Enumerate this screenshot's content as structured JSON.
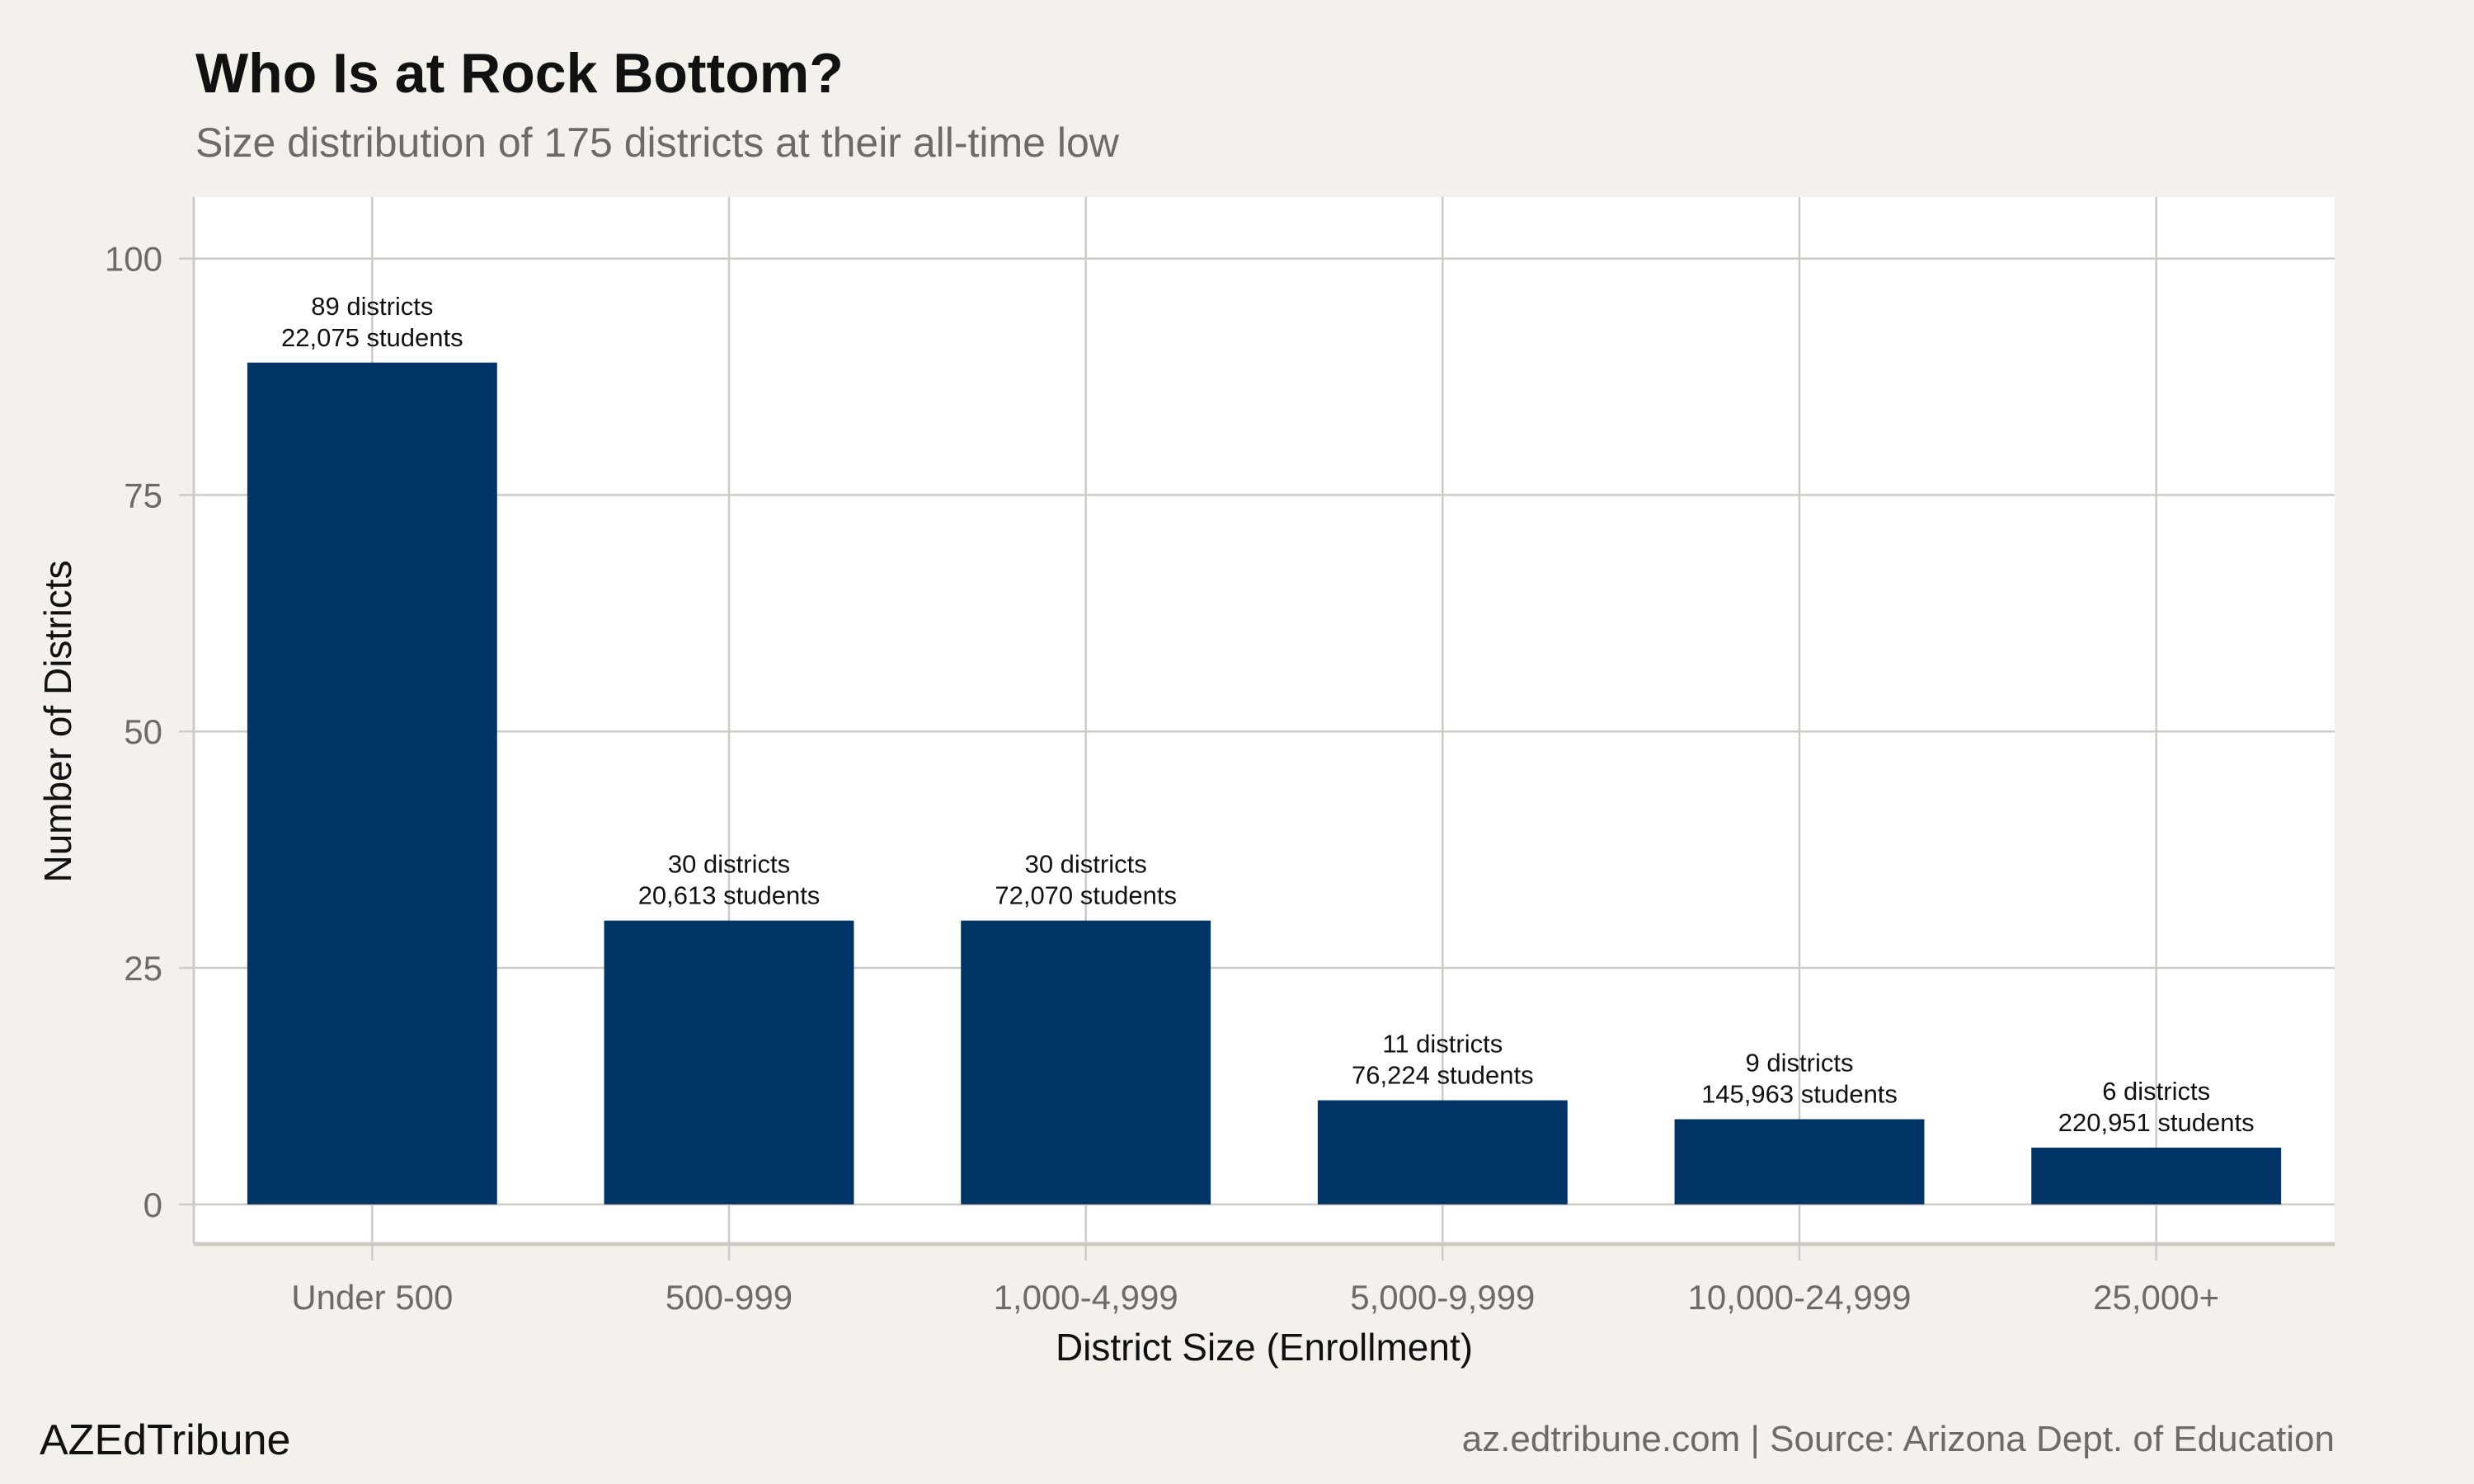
{
  "chart_data": {
    "type": "bar",
    "title": "Who Is at Rock Bottom?",
    "subtitle": "Size distribution of 175 districts at their all-time low",
    "xlabel": "District Size (Enrollment)",
    "ylabel": "Number of Districts",
    "categories": [
      "Under 500",
      "500-999",
      "1,000-4,999",
      "5,000-9,999",
      "10,000-24,999",
      "25,000+"
    ],
    "values": [
      89,
      30,
      30,
      11,
      9,
      6
    ],
    "students": [
      22075,
      20613,
      72070,
      76224,
      145963,
      220951
    ],
    "data_labels": [
      [
        "89 districts",
        "22,075 students"
      ],
      [
        "30 districts",
        "20,613 students"
      ],
      [
        "30 districts",
        "72,070 students"
      ],
      [
        "11 districts",
        "76,224 students"
      ],
      [
        "9 districts",
        "145,963 students"
      ],
      [
        "6 districts",
        "220,951 students"
      ]
    ],
    "yticks": [
      0,
      25,
      50,
      75,
      100
    ],
    "ytick_labels": [
      "0",
      "25",
      "50",
      "75",
      "100"
    ],
    "ylim": [
      -4.2,
      106.5
    ],
    "grid": true,
    "bar_color": "#003366",
    "panel_color": "#ffffff",
    "background_color": "#f4f1ec",
    "grid_color": "#cfcac3"
  },
  "footer": {
    "brand": "AZEdTribune",
    "source": "az.edtribune.com | Source: Arizona Dept. of Education"
  }
}
